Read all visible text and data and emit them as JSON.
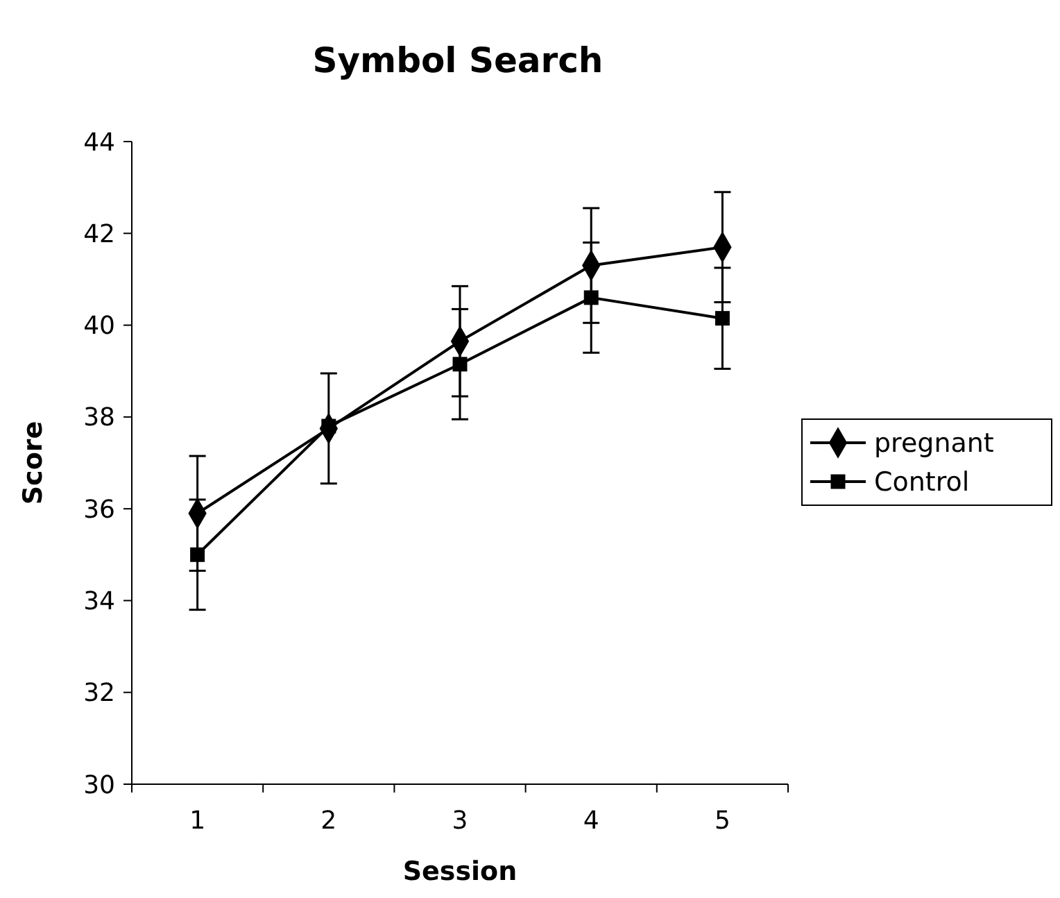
{
  "chart_data": {
    "type": "line",
    "title": "Symbol Search",
    "xlabel": "Session",
    "ylabel": "Score",
    "categories": [
      "1",
      "2",
      "3",
      "4",
      "5"
    ],
    "series": [
      {
        "name": "pregnant",
        "color": "#000000",
        "marker": "diamond",
        "values": [
          35.9,
          37.75,
          39.65,
          41.3,
          41.7
        ],
        "errors": [
          1.25,
          1.2,
          1.2,
          1.25,
          1.2
        ]
      },
      {
        "name": "Control",
        "color": "#000000",
        "marker": "square",
        "values": [
          35.0,
          37.8,
          39.15,
          40.6,
          40.15
        ],
        "errors": [
          1.2,
          null,
          1.2,
          1.2,
          1.1
        ]
      }
    ],
    "ylim": [
      30,
      44
    ],
    "yticks": [
      30,
      32,
      34,
      36,
      38,
      40,
      42,
      44
    ],
    "grid": false,
    "legend": "right",
    "line_style": "solid"
  }
}
